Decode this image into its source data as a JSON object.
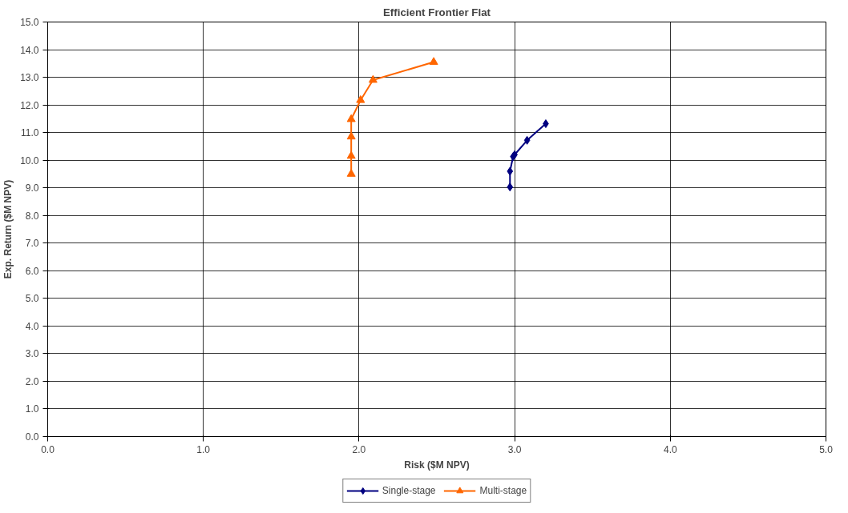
{
  "chart_data": {
    "type": "line",
    "title": "Efficient Frontier Flat",
    "xlabel": "Risk ($M NPV)",
    "ylabel": "Exp. Return ($M NPV)",
    "xlim": [
      0,
      5
    ],
    "xticks": [
      {
        "value": 0,
        "label": "0.0"
      },
      {
        "value": 1,
        "label": "1.0"
      },
      {
        "value": 2,
        "label": "2.0"
      },
      {
        "value": 3,
        "label": "3.0"
      },
      {
        "value": 4,
        "label": "4.0"
      },
      {
        "value": 5,
        "label": "5.0"
      }
    ],
    "ylim": [
      0,
      15
    ],
    "yticks": [
      {
        "value": 0,
        "label": "0.0"
      },
      {
        "value": 1,
        "label": "1.0"
      },
      {
        "value": 2,
        "label": "2.0"
      },
      {
        "value": 3,
        "label": "3.0"
      },
      {
        "value": 4,
        "label": "4.0"
      },
      {
        "value": 5,
        "label": "5.0"
      },
      {
        "value": 6,
        "label": "6.0"
      },
      {
        "value": 7,
        "label": "7.0"
      },
      {
        "value": 8,
        "label": "8.0"
      },
      {
        "value": 9,
        "label": "9.0"
      },
      {
        "value": 10,
        "label": "10.0"
      },
      {
        "value": 11,
        "label": "11.0"
      },
      {
        "value": 12,
        "label": "12.0"
      },
      {
        "value": 13,
        "label": "13.0"
      },
      {
        "value": 14,
        "label": "14.0"
      },
      {
        "value": 15,
        "label": "15.0"
      }
    ],
    "grid": true,
    "legend": "bottom",
    "series": [
      {
        "name": "Single-stage",
        "color": "#000080",
        "marker": "diamond",
        "x": [
          2.97,
          2.97,
          2.99,
          3.0,
          3.08,
          3.2
        ],
        "values": [
          9.03,
          9.6,
          10.13,
          10.2,
          10.72,
          11.32
        ]
      },
      {
        "name": "Multi-stage",
        "color": "#ff6600",
        "marker": "triangle",
        "x": [
          1.95,
          1.95,
          1.95,
          1.95,
          2.01,
          2.09,
          2.48
        ],
        "values": [
          9.5,
          10.15,
          10.85,
          11.48,
          12.17,
          12.9,
          13.55
        ]
      }
    ]
  }
}
